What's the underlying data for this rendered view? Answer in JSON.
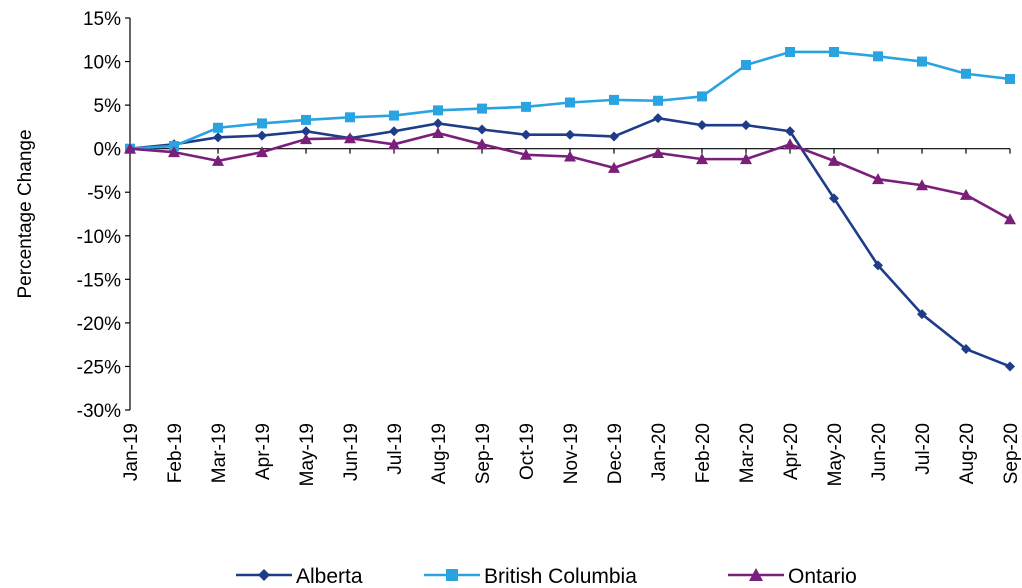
{
  "chart_data": {
    "type": "line",
    "title": "",
    "xlabel": "",
    "ylabel": "Percentage Change",
    "ylim": [
      -30,
      15
    ],
    "ytick_values": [
      15,
      10,
      5,
      0,
      -5,
      -10,
      -15,
      -20,
      -25,
      -30
    ],
    "ytick_labels": [
      "15%",
      "10%",
      "5%",
      "0%",
      "-5%",
      "-10%",
      "-15%",
      "-20%",
      "-25%",
      "-30%"
    ],
    "categories": [
      "Jan-19",
      "Feb-19",
      "Mar-19",
      "Apr-19",
      "May-19",
      "Jun-19",
      "Jul-19",
      "Aug-19",
      "Sep-19",
      "Oct-19",
      "Nov-19",
      "Dec-19",
      "Jan-20",
      "Feb-20",
      "Mar-20",
      "Apr-20",
      "May-20",
      "Jun-20",
      "Jul-20",
      "Aug-20",
      "Sep-20"
    ],
    "grid": false,
    "legend_position": "bottom",
    "series": [
      {
        "name": "Alberta",
        "color": "#1f3c88",
        "marker": "diamond",
        "values": [
          0,
          0.5,
          1.3,
          1.5,
          2.0,
          1.2,
          2.0,
          2.9,
          2.2,
          1.6,
          1.6,
          1.4,
          3.5,
          2.7,
          2.7,
          2.0,
          -5.7,
          -13.4,
          -19.0,
          -23.0,
          -25.0
        ]
      },
      {
        "name": "British Columbia",
        "color": "#2aa4e0",
        "marker": "square",
        "values": [
          0,
          0.3,
          2.4,
          2.9,
          3.3,
          3.6,
          3.8,
          4.4,
          4.6,
          4.8,
          5.3,
          5.6,
          5.5,
          6.0,
          9.6,
          11.1,
          11.1,
          10.6,
          10.0,
          8.6,
          8.0
        ]
      },
      {
        "name": "Ontario",
        "color": "#7a1f7a",
        "marker": "triangle",
        "values": [
          0,
          -0.4,
          -1.4,
          -0.4,
          1.1,
          1.2,
          0.5,
          1.8,
          0.5,
          -0.7,
          -0.9,
          -2.2,
          -0.5,
          -1.2,
          -1.2,
          0.5,
          -1.4,
          -3.5,
          -4.2,
          -5.3,
          -8.1
        ]
      }
    ]
  }
}
